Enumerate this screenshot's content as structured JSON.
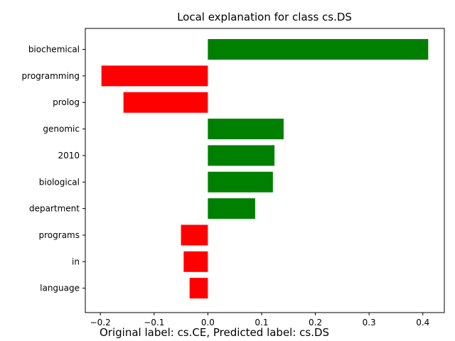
{
  "chart_data": {
    "type": "bar",
    "orientation": "horizontal",
    "title": "Local explanation for class cs.DS",
    "categories": [
      "biochemical",
      "programming",
      "prolog",
      "genomic",
      "2010",
      "biological",
      "department",
      "programs",
      "in",
      "language"
    ],
    "values": [
      0.41,
      -0.198,
      -0.157,
      0.141,
      0.124,
      0.121,
      0.088,
      -0.05,
      -0.045,
      -0.034
    ],
    "xlim": [
      -0.228,
      0.44
    ],
    "xticks": [
      -0.2,
      -0.1,
      0.0,
      0.1,
      0.2,
      0.3,
      0.4
    ],
    "xtick_labels": [
      "−0.2",
      "−0.1",
      "0.0",
      "0.1",
      "0.2",
      "0.3",
      "0.4"
    ],
    "xlabel": "",
    "ylabel": "",
    "grid": false,
    "colors": {
      "positive": "#008000",
      "negative": "#ff0000"
    }
  },
  "caption": "Original label: cs.CE, Predicted label: cs.DS"
}
